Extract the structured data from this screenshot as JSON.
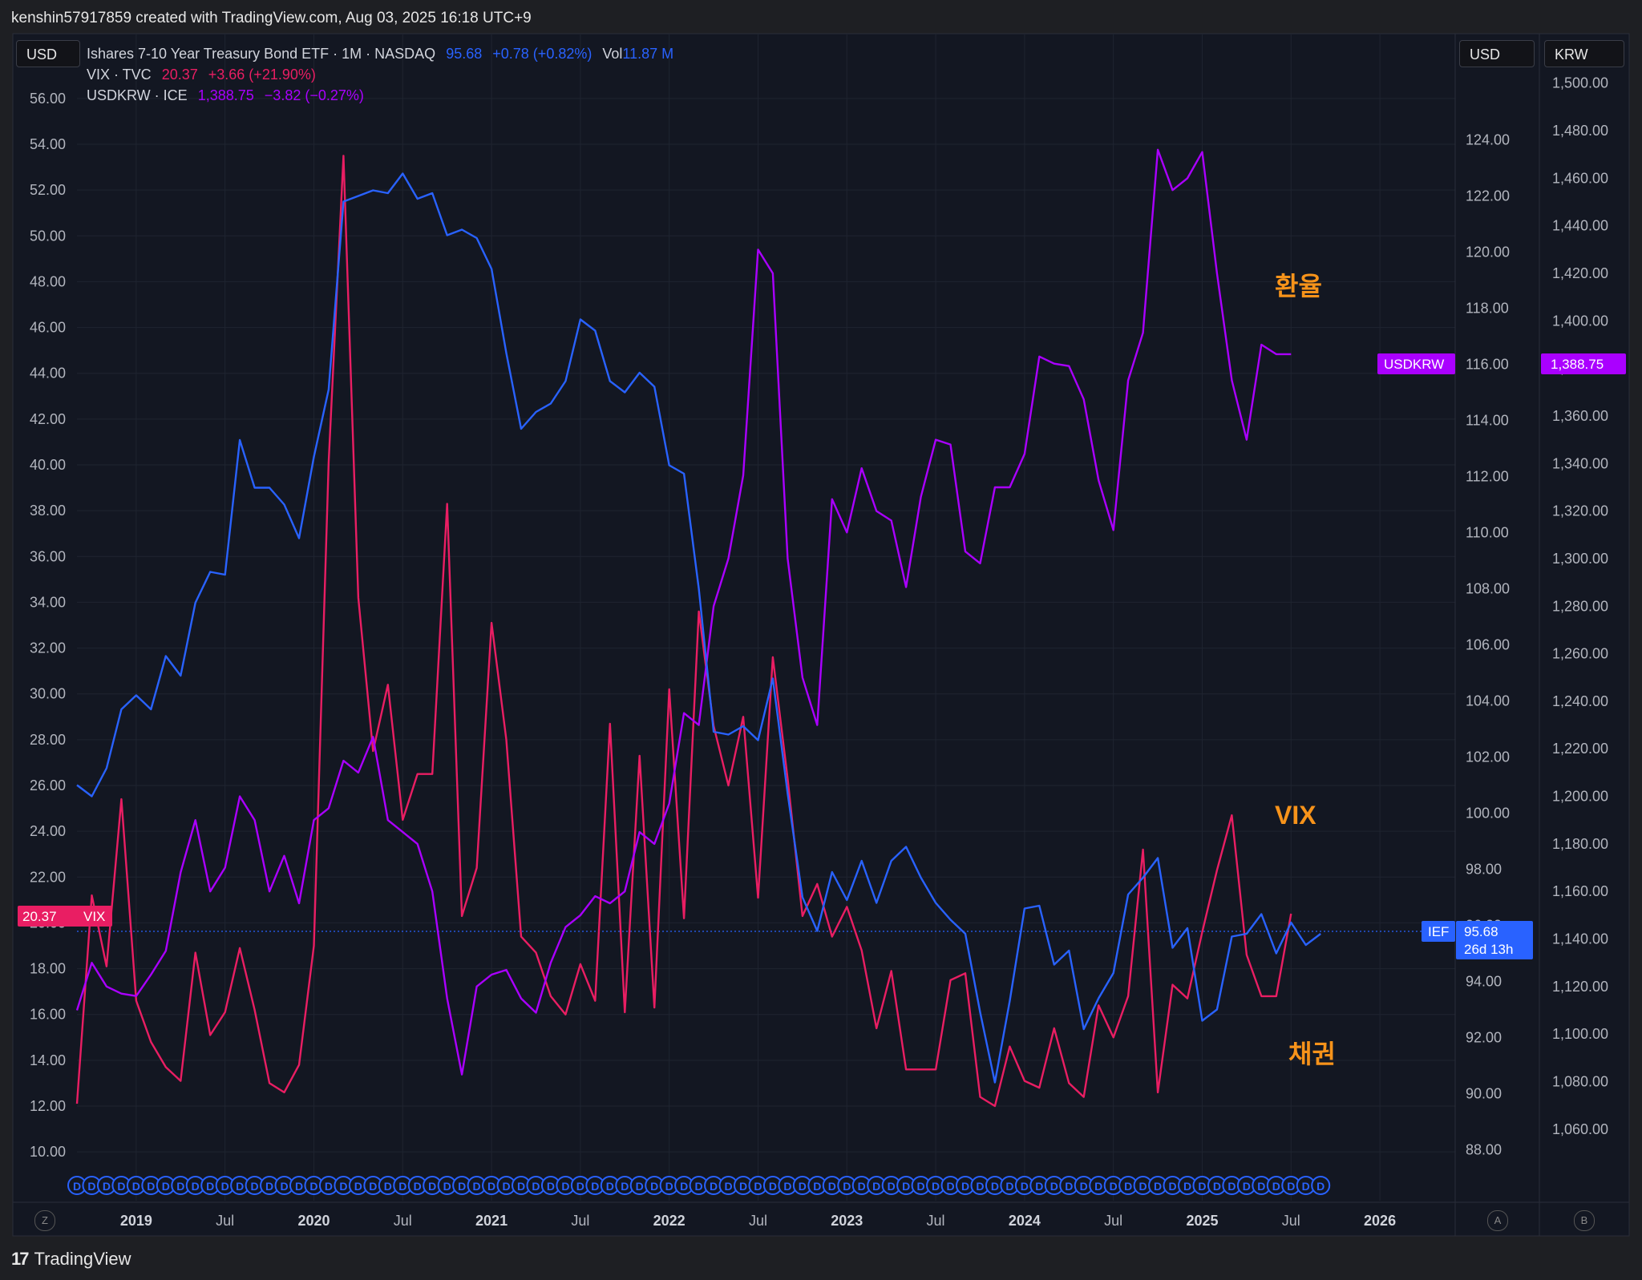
{
  "header": {
    "text": "kenshin57917859 created with TradingView.com, Aug 03, 2025 16:18 UTC+9"
  },
  "footer": {
    "brand": "TradingView",
    "logo": "17"
  },
  "legend": {
    "ief": {
      "name": "Ishares 7-10 Year Treasury Bond ETF · 1M · NASDAQ",
      "price": "95.68",
      "change": "+0.78 (+0.82%)",
      "vol_label": "Vol",
      "vol": "11.87 M"
    },
    "vix": {
      "name": "VIX · TVC",
      "price": "20.37",
      "change": "+3.66 (+21.90%)"
    },
    "krw": {
      "name": "USDKRW · ICE",
      "price": "1,388.75",
      "change": "−3.82 (−0.27%)"
    }
  },
  "units": {
    "left": "USD",
    "right1": "USD",
    "right2": "KRW"
  },
  "axis_corners": {
    "left": "Z",
    "a": "A",
    "b": "B"
  },
  "tags": {
    "vix_price": "20.37",
    "vix_name": "VIX",
    "krw_name": "USDKRW",
    "krw_price": "1,388.75",
    "ief_name": "IEF",
    "ief_price": "95.68",
    "ief_countdown": "26d 13h"
  },
  "annotations": {
    "fx": "환율",
    "vix": "VIX",
    "bond": "채권"
  },
  "colors": {
    "ief": "#2962ff",
    "vix": "#e91e63",
    "krw": "#aa00ff",
    "annot": "#f7931a",
    "bg": "#131722"
  },
  "chart_data": [
    {
      "type": "line",
      "x_ticks": [
        "2019",
        "Jul",
        "2020",
        "Jul",
        "2021",
        "Jul",
        "2022",
        "Jul",
        "2023",
        "Jul",
        "2024",
        "Jul",
        "2025",
        "Jul",
        "2026"
      ],
      "axes": {
        "left": {
          "unit": "USD",
          "ylim": [
            8.5,
            57.5
          ],
          "ticks": [
            "10.00",
            "12.00",
            "14.00",
            "16.00",
            "18.00",
            "20.00",
            "22.00",
            "24.00",
            "26.00",
            "28.00",
            "30.00",
            "32.00",
            "34.00",
            "36.00",
            "38.00",
            "40.00",
            "42.00",
            "44.00",
            "46.00",
            "48.00",
            "50.00",
            "52.00",
            "54.00",
            "56.00"
          ]
        },
        "right1": {
          "unit": "USD",
          "ylim": [
            86.7,
            126.7
          ],
          "ticks": [
            "88.00",
            "90.00",
            "92.00",
            "94.00",
            "96.00",
            "98.00",
            "100.00",
            "102.00",
            "104.00",
            "106.00",
            "108.00",
            "110.00",
            "112.00",
            "114.00",
            "116.00",
            "118.00",
            "120.00",
            "122.00",
            "124.00"
          ]
        },
        "right2": {
          "unit": "KRW",
          "ylim": [
            1036,
            1508
          ],
          "ticks": [
            "1,060.00",
            "1,080.00",
            "1,100.00",
            "1,120.00",
            "1,140.00",
            "1,160.00",
            "1,180.00",
            "1,200.00",
            "1,220.00",
            "1,240.00",
            "1,260.00",
            "1,280.00",
            "1,300.00",
            "1,320.00",
            "1,340.00",
            "1,360.00",
            "1,380.00",
            "1,400.00",
            "1,420.00",
            "1,440.00",
            "1,460.00",
            "1,480.00",
            "1,500.00"
          ]
        }
      },
      "grid": true,
      "series": [
        {
          "name": "Ishares 7-10 Year Treasury Bond ETF",
          "axis": "right1",
          "color": "#2962ff",
          "start": "2018-09",
          "interval": "1M",
          "values": [
            101.0,
            100.6,
            101.6,
            103.7,
            104.2,
            103.7,
            105.6,
            104.9,
            107.5,
            108.6,
            108.5,
            113.3,
            111.6,
            111.6,
            111.0,
            109.8,
            112.7,
            115.1,
            121.8,
            122.0,
            122.2,
            122.1,
            122.8,
            121.9,
            122.1,
            120.6,
            120.8,
            120.5,
            119.4,
            116.4,
            113.7,
            114.3,
            114.6,
            115.4,
            117.6,
            117.2,
            115.4,
            115.0,
            115.7,
            115.2,
            112.4,
            112.1,
            108.0,
            102.9,
            102.8,
            103.1,
            102.6,
            104.8,
            100.7,
            97.0,
            95.8,
            97.9,
            96.9,
            98.3,
            96.8,
            98.3,
            98.8,
            97.7,
            96.8,
            96.2,
            95.7,
            92.9,
            90.4,
            93.3,
            96.6,
            96.7,
            94.6,
            95.1,
            92.3,
            93.4,
            94.3,
            97.1,
            97.7,
            98.4,
            95.2,
            95.9,
            92.6,
            93.0,
            95.6,
            95.7,
            96.4,
            95.0,
            96.1,
            95.3,
            95.7
          ]
        },
        {
          "name": "VIX",
          "axis": "left",
          "color": "#e91e63",
          "start": "2018-09",
          "interval": "1M",
          "values": [
            12.1,
            21.2,
            18.1,
            25.4,
            16.6,
            14.8,
            13.7,
            13.1,
            18.7,
            15.1,
            16.1,
            18.9,
            16.2,
            13.0,
            12.6,
            13.8,
            19.0,
            40.1,
            53.5,
            34.2,
            27.5,
            30.4,
            24.5,
            26.5,
            26.5,
            38.3,
            20.3,
            22.4,
            33.1,
            28.0,
            19.4,
            18.7,
            16.8,
            16.0,
            18.2,
            16.6,
            28.7,
            16.1,
            27.3,
            16.3,
            30.2,
            20.2,
            33.6,
            28.6,
            26.0,
            29.0,
            21.1,
            31.6,
            26.3,
            20.3,
            21.7,
            19.4,
            20.7,
            18.8,
            15.4,
            17.9,
            13.6,
            13.6,
            13.6,
            17.5,
            17.8,
            12.4,
            12.0,
            14.6,
            13.1,
            12.8,
            15.4,
            13.0,
            12.4,
            16.4,
            15.0,
            16.8,
            23.2,
            12.6,
            17.3,
            16.7,
            19.6,
            22.3,
            24.7,
            18.6,
            16.8,
            16.8,
            20.4
          ]
        },
        {
          "name": "USDKRW",
          "axis": "right2",
          "color": "#aa00ff",
          "start": "2018-09",
          "interval": "1M",
          "values": [
            1110,
            1130,
            1120,
            1117,
            1116,
            1125,
            1135,
            1168,
            1190,
            1160,
            1170,
            1200,
            1190,
            1160,
            1175,
            1155,
            1190,
            1195,
            1215,
            1210,
            1225,
            1190,
            1185,
            1180,
            1160,
            1115,
            1083,
            1120,
            1125,
            1127,
            1115,
            1109,
            1130,
            1145,
            1150,
            1158,
            1155,
            1160,
            1185,
            1180,
            1197,
            1235,
            1230,
            1280,
            1300,
            1335,
            1430,
            1420,
            1300,
            1250,
            1230,
            1325,
            1311,
            1338,
            1320,
            1316,
            1288,
            1326,
            1350,
            1348,
            1303,
            1298,
            1330,
            1330,
            1344,
            1385,
            1382,
            1381,
            1367,
            1333,
            1312,
            1375,
            1395,
            1472,
            1455,
            1460,
            1471,
            1420,
            1375,
            1350,
            1390,
            1386,
            1386
          ]
        }
      ]
    }
  ]
}
